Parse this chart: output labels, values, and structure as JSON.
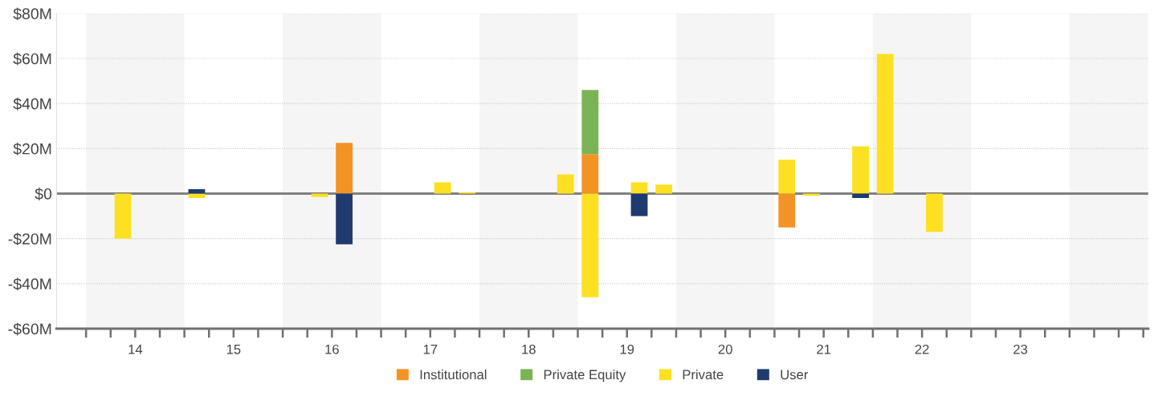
{
  "chart_data": {
    "type": "bar",
    "stacked": true,
    "x": [
      13.875,
      14.625,
      15.875,
      16.125,
      17.125,
      17.375,
      18.375,
      18.625,
      19.125,
      19.375,
      20.625,
      20.875,
      21.375,
      21.625,
      22.125
    ],
    "series": [
      {
        "name": "Institutional",
        "color": "#f39325",
        "values": [
          null,
          null,
          null,
          22.5,
          null,
          null,
          null,
          17.5,
          null,
          null,
          -15,
          null,
          null,
          null,
          null
        ]
      },
      {
        "name": "Private Equity",
        "color": "#7ab555",
        "values": [
          null,
          null,
          null,
          null,
          null,
          null,
          null,
          28.5,
          null,
          null,
          null,
          null,
          null,
          null,
          null
        ]
      },
      {
        "name": "Private",
        "color": "#fde021",
        "values": [
          -20,
          -2,
          -1.5,
          null,
          5,
          0.5,
          8.5,
          -46,
          5,
          4,
          15,
          -1,
          21,
          62,
          -17
        ]
      },
      {
        "name": "User",
        "color": "#1f3a6e",
        "values": [
          null,
          2,
          null,
          -22.5,
          null,
          null,
          null,
          null,
          -10,
          null,
          null,
          null,
          -2,
          null,
          null
        ]
      }
    ],
    "xlim": [
      13.2,
      24.3
    ],
    "xticks": [
      {
        "value": 13.5,
        "label": null
      },
      {
        "value": 13.75,
        "label": null
      },
      14,
      {
        "value": 14.25,
        "label": null
      },
      {
        "value": 14.5,
        "label": null
      },
      {
        "value": 14.75,
        "label": null
      },
      15,
      {
        "value": 15.25,
        "label": null
      },
      {
        "value": 15.5,
        "label": null
      },
      {
        "value": 15.75,
        "label": null
      },
      16,
      {
        "value": 16.25,
        "label": null
      },
      {
        "value": 16.5,
        "label": null
      },
      {
        "value": 16.75,
        "label": null
      },
      17,
      {
        "value": 17.25,
        "label": null
      },
      {
        "value": 17.5,
        "label": null
      },
      {
        "value": 17.75,
        "label": null
      },
      18,
      {
        "value": 18.25,
        "label": null
      },
      {
        "value": 18.5,
        "label": null
      },
      {
        "value": 18.75,
        "label": null
      },
      19,
      {
        "value": 19.25,
        "label": null
      },
      {
        "value": 19.5,
        "label": null
      },
      {
        "value": 19.75,
        "label": null
      },
      20,
      {
        "value": 20.25,
        "label": null
      },
      {
        "value": 20.5,
        "label": null
      },
      {
        "value": 20.75,
        "label": null
      },
      21,
      {
        "value": 21.25,
        "label": null
      },
      {
        "value": 21.5,
        "label": null
      },
      {
        "value": 21.75,
        "label": null
      },
      22,
      {
        "value": 22.25,
        "label": null
      },
      {
        "value": 22.5,
        "label": null
      },
      {
        "value": 22.75,
        "label": null
      },
      23,
      {
        "value": 23.25,
        "label": null
      },
      {
        "value": 23.5,
        "label": null
      },
      {
        "value": 23.75,
        "label": null
      },
      {
        "value": 24,
        "label": null
      },
      {
        "value": 24.25,
        "label": null
      }
    ],
    "ylim": [
      -60,
      80
    ],
    "yticks": [
      {
        "value": -60,
        "label": "-$60M"
      },
      {
        "value": -40,
        "label": "-$40M"
      },
      {
        "value": -20,
        "label": "-$20M"
      },
      {
        "value": 0,
        "label": "$0"
      },
      {
        "value": 20,
        "label": "$20M"
      },
      {
        "value": 40,
        "label": "$40M"
      },
      {
        "value": 60,
        "label": "$60M"
      },
      {
        "value": 80,
        "label": "$80M"
      }
    ],
    "bands": [
      {
        "axis": "x",
        "from": 13.5,
        "to": 14.5,
        "color": "#f5f5f5"
      },
      {
        "axis": "x",
        "from": 15.5,
        "to": 16.5,
        "color": "#f5f5f5"
      },
      {
        "axis": "x",
        "from": 17.5,
        "to": 18.5,
        "color": "#f5f5f5"
      },
      {
        "axis": "x",
        "from": 19.5,
        "to": 20.5,
        "color": "#f5f5f5"
      },
      {
        "axis": "x",
        "from": 21.5,
        "to": 22.5,
        "color": "#f5f5f5"
      },
      {
        "axis": "x",
        "from": 23.5,
        "to": 24.3,
        "color": "#f5f5f5"
      }
    ],
    "ref_lines": [
      {
        "axis": "y",
        "value": 0,
        "color": "#808080"
      }
    ],
    "grid": "y",
    "legend": "bottom"
  }
}
